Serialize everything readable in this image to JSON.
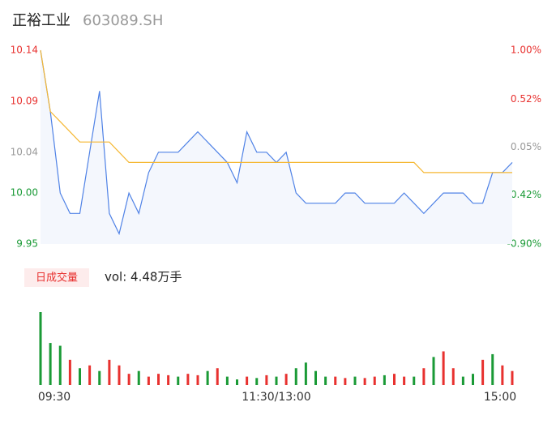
{
  "header": {
    "name": "正裕工业",
    "code": "603089.SH"
  },
  "chart_data": [
    {
      "type": "line",
      "x": [
        0,
        5,
        10,
        15,
        20,
        25,
        30,
        35,
        40,
        45,
        50,
        55,
        60,
        65,
        70,
        75,
        80,
        85,
        90,
        95,
        100,
        105,
        110,
        115,
        120,
        125,
        130,
        135,
        140,
        145,
        150,
        155,
        160,
        165,
        170,
        175,
        180,
        185,
        190,
        195,
        200,
        205,
        210,
        215,
        220,
        225,
        230,
        235,
        240
      ],
      "series": [
        {
          "color": "#4f82e6",
          "values": [
            10.14,
            10.08,
            10.0,
            9.98,
            9.98,
            10.04,
            10.1,
            9.98,
            9.96,
            10.0,
            9.98,
            10.02,
            10.04,
            10.04,
            10.04,
            10.05,
            10.06,
            10.05,
            10.04,
            10.03,
            10.01,
            10.06,
            10.04,
            10.04,
            10.03,
            10.04,
            10.0,
            9.99,
            9.99,
            9.99,
            9.99,
            10.0,
            10.0,
            9.99,
            9.99,
            9.99,
            9.99,
            10.0,
            9.99,
            9.98,
            9.99,
            10.0,
            10.0,
            10.0,
            9.99,
            9.99,
            10.02,
            10.02,
            10.03
          ]
        },
        {
          "color": "#f5b731",
          "values": [
            10.14,
            10.08,
            10.07,
            10.06,
            10.05,
            10.05,
            10.05,
            10.05,
            10.04,
            10.03,
            10.03,
            10.03,
            10.03,
            10.03,
            10.03,
            10.03,
            10.03,
            10.03,
            10.03,
            10.03,
            10.03,
            10.03,
            10.03,
            10.03,
            10.03,
            10.03,
            10.03,
            10.03,
            10.03,
            10.03,
            10.03,
            10.03,
            10.03,
            10.03,
            10.03,
            10.03,
            10.03,
            10.03,
            10.03,
            10.02,
            10.02,
            10.02,
            10.02,
            10.02,
            10.02,
            10.02,
            10.02,
            10.02,
            10.02
          ]
        }
      ],
      "xlim": [
        0,
        240
      ],
      "ylim": [
        9.95,
        10.14
      ],
      "yticks": [
        10.14,
        10.09,
        10.04,
        {
          "value": 10,
          "label": "10.00"
        },
        9.95
      ],
      "ytick_colors": [
        "#e8312f",
        "#e8312f",
        "#999999",
        "#1a9a36",
        "#1a9a36"
      ],
      "y2lim": [
        -0.9,
        1
      ],
      "y2ticks": [
        {
          "value": 1,
          "label": "1.00%"
        },
        {
          "value": 0.52,
          "label": "0.52%"
        },
        {
          "value": 0.05,
          "label": "0.05%"
        },
        {
          "value": -0.42,
          "label": "-0.42%"
        },
        {
          "value": -0.9,
          "label": "-0.90%"
        }
      ],
      "y2tick_colors": [
        "#e8312f",
        "#e8312f",
        "#999999",
        "#1a9a36",
        "#1a9a36"
      ]
    },
    {
      "type": "bar",
      "legend_button": "日成交量",
      "summary": "vol: 4.48万手",
      "x": [
        0,
        5,
        10,
        15,
        20,
        25,
        30,
        35,
        40,
        45,
        50,
        55,
        60,
        65,
        70,
        75,
        80,
        85,
        90,
        95,
        100,
        105,
        110,
        115,
        120,
        125,
        130,
        135,
        140,
        145,
        150,
        155,
        160,
        165,
        170,
        175,
        180,
        185,
        190,
        195,
        200,
        205,
        210,
        215,
        220,
        225,
        230,
        235,
        240
      ],
      "values": [
        2600,
        1500,
        1400,
        900,
        600,
        700,
        500,
        900,
        700,
        400,
        500,
        300,
        400,
        350,
        300,
        400,
        350,
        500,
        600,
        300,
        200,
        300,
        250,
        350,
        300,
        400,
        600,
        800,
        500,
        300,
        300,
        250,
        300,
        250,
        300,
        350,
        400,
        300,
        300,
        600,
        1000,
        1200,
        600,
        300,
        400,
        900,
        1100,
        700,
        500
      ],
      "colors": [
        "#1a9a36",
        "#1a9a36",
        "#1a9a36",
        "#e8312f",
        "#1a9a36",
        "#e8312f",
        "#1a9a36",
        "#e8312f",
        "#e8312f",
        "#e8312f",
        "#1a9a36",
        "#e8312f",
        "#e8312f",
        "#e8312f",
        "#1a9a36",
        "#e8312f",
        "#e8312f",
        "#1a9a36",
        "#e8312f",
        "#1a9a36",
        "#1a9a36",
        "#e8312f",
        "#1a9a36",
        "#e8312f",
        "#1a9a36",
        "#e8312f",
        "#1a9a36",
        "#1a9a36",
        "#1a9a36",
        "#1a9a36",
        "#e8312f",
        "#e8312f",
        "#1a9a36",
        "#e8312f",
        "#e8312f",
        "#1a9a36",
        "#e8312f",
        "#e8312f",
        "#1a9a36",
        "#e8312f",
        "#1a9a36",
        "#e8312f",
        "#e8312f",
        "#1a9a36",
        "#1a9a36",
        "#e8312f",
        "#1a9a36",
        "#e8312f",
        "#e8312f"
      ],
      "xlim": [
        0,
        240
      ],
      "ylim": [
        0,
        2600
      ],
      "xticks": [
        {
          "value": 0,
          "label": "09:30"
        },
        {
          "value": 120,
          "label": "11:30/13:00"
        },
        {
          "value": 240,
          "label": "15:00"
        }
      ]
    }
  ]
}
